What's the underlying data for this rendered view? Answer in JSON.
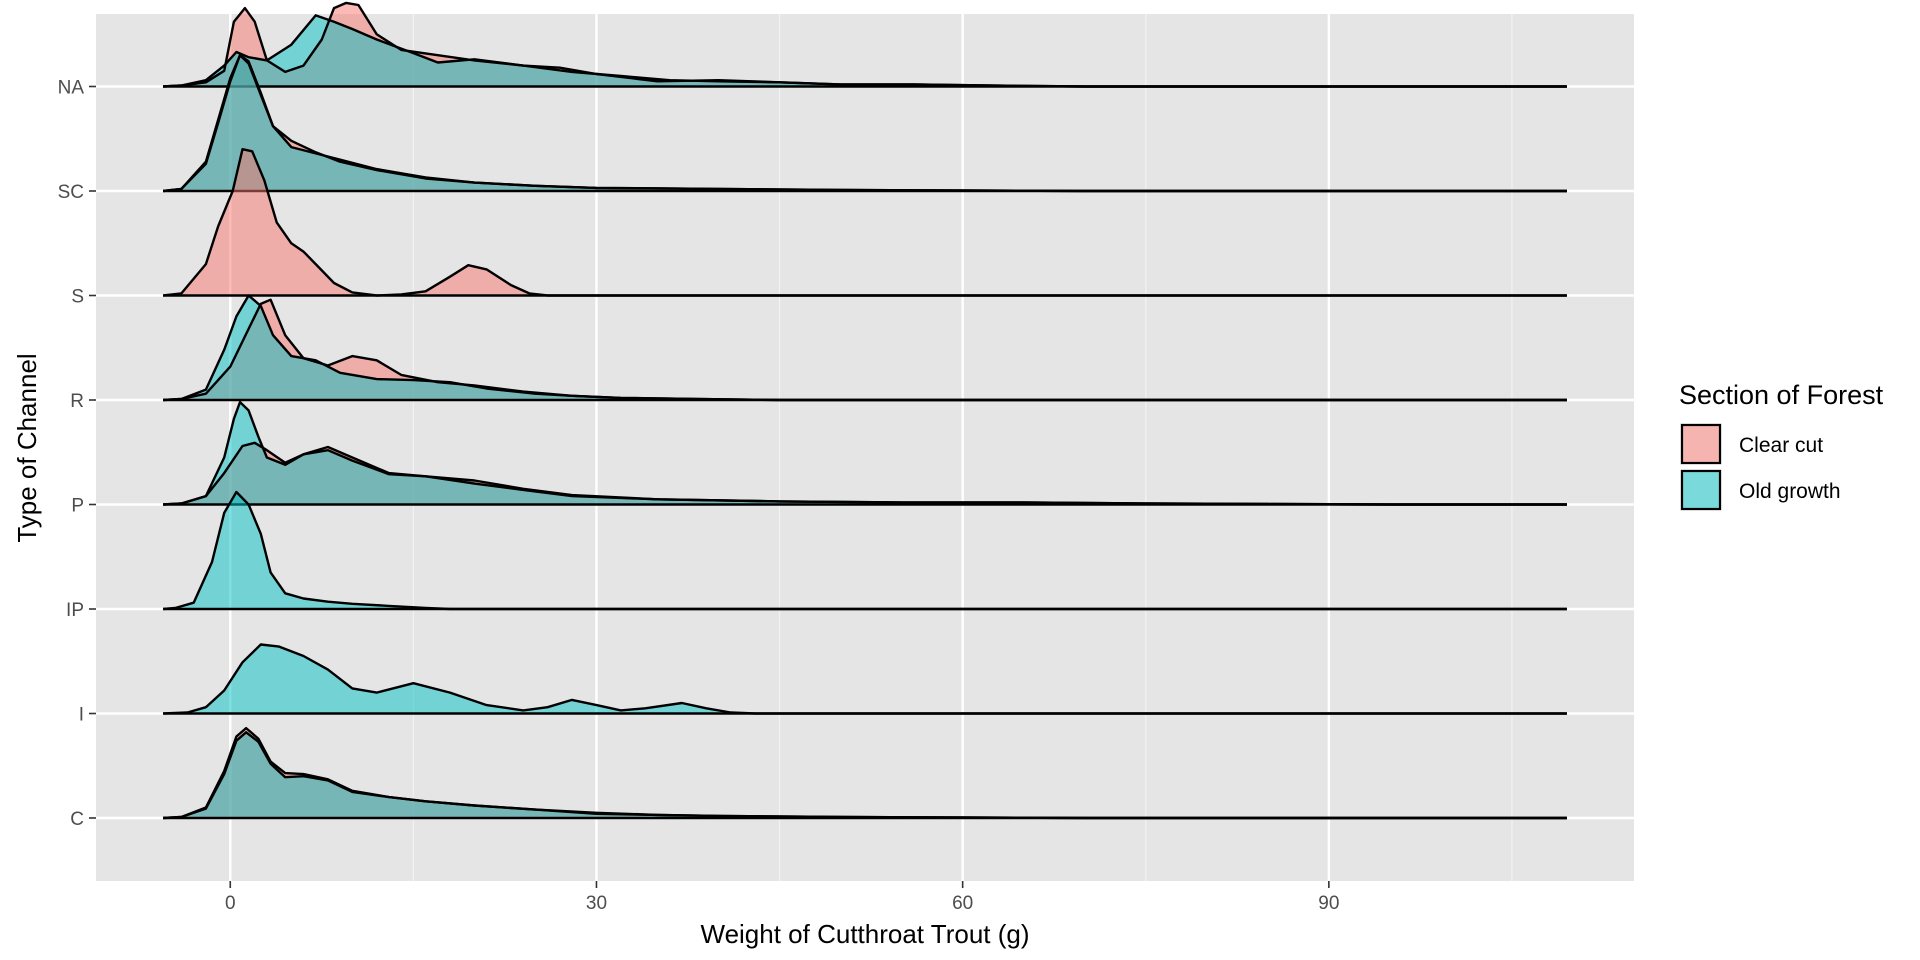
{
  "chart_data": {
    "type": "ridgeline-density",
    "title": "",
    "xlabel": "Weight of Cutthroat Trout (g)",
    "ylabel": "Type of Channel",
    "xlim": [
      -11,
      115
    ],
    "x_ticks": [
      0,
      30,
      60,
      90
    ],
    "x_minor_ticks": [
      15,
      45,
      75,
      105
    ],
    "categories": [
      "C",
      "I",
      "IP",
      "P",
      "R",
      "S",
      "SC",
      "NA"
    ],
    "line_range": [
      -5.5,
      109.5
    ],
    "ridge_scale": 1.0,
    "grid": true,
    "legend": {
      "title": "Section of Forest",
      "position": "right",
      "entries": [
        {
          "label": "Clear cut",
          "color": "#F8766D"
        },
        {
          "label": "Old growth",
          "color": "#00BFC4"
        }
      ]
    },
    "colors": {
      "panel_bg": "#E5E5E5",
      "grid": "#FFFFFF",
      "outline": "#000000",
      "fill_opacity": 0.5
    },
    "series": [
      {
        "name": "Clear cut",
        "category": "C",
        "points": [
          [
            -5.5,
            0
          ],
          [
            -4,
            0.01
          ],
          [
            -2,
            0.1
          ],
          [
            -0.5,
            0.45
          ],
          [
            0.5,
            0.78
          ],
          [
            1.3,
            0.86
          ],
          [
            2.3,
            0.76
          ],
          [
            3.3,
            0.54
          ],
          [
            4.5,
            0.43
          ],
          [
            6,
            0.42
          ],
          [
            8,
            0.37
          ],
          [
            10,
            0.26
          ],
          [
            13,
            0.2
          ],
          [
            16,
            0.16
          ],
          [
            20,
            0.12
          ],
          [
            25,
            0.08
          ],
          [
            30,
            0.05
          ],
          [
            35,
            0.03
          ],
          [
            40,
            0.02
          ],
          [
            50,
            0.01
          ],
          [
            60,
            0.005
          ],
          [
            70,
            0
          ],
          [
            109.5,
            0
          ]
        ]
      },
      {
        "name": "Old growth",
        "category": "C",
        "points": [
          [
            -5.5,
            0
          ],
          [
            -4,
            0.01
          ],
          [
            -2,
            0.09
          ],
          [
            -0.5,
            0.42
          ],
          [
            0.5,
            0.74
          ],
          [
            1.3,
            0.82
          ],
          [
            2.3,
            0.73
          ],
          [
            3.3,
            0.52
          ],
          [
            4.5,
            0.39
          ],
          [
            6,
            0.4
          ],
          [
            8,
            0.36
          ],
          [
            10,
            0.25
          ],
          [
            13,
            0.2
          ],
          [
            16,
            0.16
          ],
          [
            20,
            0.12
          ],
          [
            25,
            0.08
          ],
          [
            30,
            0.04
          ],
          [
            35,
            0.03
          ],
          [
            40,
            0.02
          ],
          [
            50,
            0.01
          ],
          [
            60,
            0.005
          ],
          [
            70,
            0
          ],
          [
            109.5,
            0
          ]
        ]
      },
      {
        "name": "Old growth",
        "category": "I",
        "points": [
          [
            -5.5,
            0
          ],
          [
            -3.5,
            0.01
          ],
          [
            -2,
            0.06
          ],
          [
            -0.5,
            0.22
          ],
          [
            1,
            0.49
          ],
          [
            2.5,
            0.66
          ],
          [
            4,
            0.64
          ],
          [
            6,
            0.55
          ],
          [
            8,
            0.42
          ],
          [
            10,
            0.24
          ],
          [
            12,
            0.2
          ],
          [
            15,
            0.29
          ],
          [
            18,
            0.2
          ],
          [
            21,
            0.08
          ],
          [
            24,
            0.03
          ],
          [
            26,
            0.06
          ],
          [
            28,
            0.13
          ],
          [
            30,
            0.08
          ],
          [
            32,
            0.03
          ],
          [
            34,
            0.05
          ],
          [
            37,
            0.1
          ],
          [
            39,
            0.05
          ],
          [
            41,
            0.01
          ],
          [
            43,
            0
          ],
          [
            109.5,
            0
          ]
        ]
      },
      {
        "name": "Old growth",
        "category": "IP",
        "points": [
          [
            -5.5,
            0
          ],
          [
            -4.5,
            0.01
          ],
          [
            -3,
            0.06
          ],
          [
            -1.5,
            0.45
          ],
          [
            -0.5,
            0.92
          ],
          [
            0.5,
            1.12
          ],
          [
            1.5,
            1.0
          ],
          [
            2.5,
            0.72
          ],
          [
            3.3,
            0.35
          ],
          [
            4.5,
            0.15
          ],
          [
            6,
            0.1
          ],
          [
            8,
            0.07
          ],
          [
            10,
            0.05
          ],
          [
            13,
            0.03
          ],
          [
            16,
            0.01
          ],
          [
            18,
            0
          ],
          [
            109.5,
            0
          ]
        ]
      },
      {
        "name": "Clear cut",
        "category": "P",
        "points": [
          [
            -5.5,
            0
          ],
          [
            -4,
            0.01
          ],
          [
            -2,
            0.08
          ],
          [
            -0.5,
            0.3
          ],
          [
            1,
            0.56
          ],
          [
            2,
            0.59
          ],
          [
            3,
            0.52
          ],
          [
            4.5,
            0.4
          ],
          [
            6,
            0.48
          ],
          [
            8,
            0.55
          ],
          [
            10,
            0.45
          ],
          [
            13,
            0.3
          ],
          [
            16,
            0.27
          ],
          [
            20,
            0.23
          ],
          [
            24,
            0.15
          ],
          [
            28,
            0.09
          ],
          [
            35,
            0.05
          ],
          [
            45,
            0.03
          ],
          [
            55,
            0.02
          ],
          [
            65,
            0.02
          ],
          [
            75,
            0.01
          ],
          [
            85,
            0.005
          ],
          [
            95,
            0
          ],
          [
            109.5,
            0
          ]
        ]
      },
      {
        "name": "Old growth",
        "category": "P",
        "points": [
          [
            -5.5,
            0
          ],
          [
            -4,
            0.01
          ],
          [
            -2,
            0.08
          ],
          [
            -0.5,
            0.45
          ],
          [
            0.3,
            0.82
          ],
          [
            0.8,
            0.98
          ],
          [
            1.5,
            0.9
          ],
          [
            2.3,
            0.65
          ],
          [
            3,
            0.45
          ],
          [
            4.5,
            0.38
          ],
          [
            6,
            0.48
          ],
          [
            8,
            0.52
          ],
          [
            10,
            0.42
          ],
          [
            13,
            0.29
          ],
          [
            16,
            0.27
          ],
          [
            20,
            0.2
          ],
          [
            24,
            0.14
          ],
          [
            28,
            0.08
          ],
          [
            35,
            0.05
          ],
          [
            45,
            0.03
          ],
          [
            55,
            0.02
          ],
          [
            65,
            0.02
          ],
          [
            75,
            0.01
          ],
          [
            85,
            0.005
          ],
          [
            95,
            0
          ],
          [
            109.5,
            0
          ]
        ]
      },
      {
        "name": "Clear cut",
        "category": "R",
        "points": [
          [
            -5.5,
            0
          ],
          [
            -4,
            0.01
          ],
          [
            -2,
            0.06
          ],
          [
            0,
            0.32
          ],
          [
            1.5,
            0.68
          ],
          [
            2.5,
            0.92
          ],
          [
            3.3,
            0.96
          ],
          [
            4.5,
            0.62
          ],
          [
            6,
            0.4
          ],
          [
            8,
            0.33
          ],
          [
            10,
            0.42
          ],
          [
            12,
            0.38
          ],
          [
            14,
            0.24
          ],
          [
            17,
            0.17
          ],
          [
            20,
            0.14
          ],
          [
            24,
            0.08
          ],
          [
            28,
            0.04
          ],
          [
            32,
            0.02
          ],
          [
            38,
            0.01
          ],
          [
            45,
            0
          ],
          [
            109.5,
            0
          ]
        ]
      },
      {
        "name": "Old growth",
        "category": "R",
        "points": [
          [
            -5.5,
            0
          ],
          [
            -4,
            0.01
          ],
          [
            -2,
            0.1
          ],
          [
            -0.5,
            0.48
          ],
          [
            0.5,
            0.8
          ],
          [
            1.5,
            1.0
          ],
          [
            2.5,
            0.9
          ],
          [
            3.5,
            0.62
          ],
          [
            5,
            0.42
          ],
          [
            7,
            0.38
          ],
          [
            9,
            0.26
          ],
          [
            12,
            0.2
          ],
          [
            15,
            0.19
          ],
          [
            18,
            0.17
          ],
          [
            21,
            0.11
          ],
          [
            25,
            0.06
          ],
          [
            28,
            0.04
          ],
          [
            32,
            0.02
          ],
          [
            38,
            0.01
          ],
          [
            45,
            0
          ],
          [
            109.5,
            0
          ]
        ]
      },
      {
        "name": "Clear cut",
        "category": "S",
        "points": [
          [
            -5.5,
            0
          ],
          [
            -4,
            0.02
          ],
          [
            -2,
            0.3
          ],
          [
            -1,
            0.66
          ],
          [
            0.2,
            1.0
          ],
          [
            1,
            1.4
          ],
          [
            1.8,
            1.38
          ],
          [
            2.8,
            1.1
          ],
          [
            3.8,
            0.7
          ],
          [
            5,
            0.5
          ],
          [
            6,
            0.42
          ],
          [
            7,
            0.3
          ],
          [
            8.5,
            0.12
          ],
          [
            10,
            0.03
          ],
          [
            12,
            0
          ],
          [
            14,
            0.01
          ],
          [
            16,
            0.04
          ],
          [
            18,
            0.18
          ],
          [
            19.5,
            0.29
          ],
          [
            21,
            0.25
          ],
          [
            23,
            0.1
          ],
          [
            24.5,
            0.02
          ],
          [
            26,
            0
          ],
          [
            109.5,
            0
          ]
        ]
      },
      {
        "name": "Clear cut",
        "category": "SC",
        "points": [
          [
            -5.5,
            0
          ],
          [
            -4,
            0.02
          ],
          [
            -2,
            0.28
          ],
          [
            -1,
            0.68
          ],
          [
            0,
            1.08
          ],
          [
            0.8,
            1.3
          ],
          [
            1.5,
            1.22
          ],
          [
            2.5,
            0.92
          ],
          [
            3.5,
            0.62
          ],
          [
            5,
            0.48
          ],
          [
            7,
            0.37
          ],
          [
            9,
            0.28
          ],
          [
            12,
            0.2
          ],
          [
            16,
            0.12
          ],
          [
            20,
            0.08
          ],
          [
            25,
            0.05
          ],
          [
            30,
            0.03
          ],
          [
            40,
            0.02
          ],
          [
            50,
            0.01
          ],
          [
            60,
            0.005
          ],
          [
            70,
            0
          ],
          [
            109.5,
            0
          ]
        ]
      },
      {
        "name": "Old growth",
        "category": "SC",
        "points": [
          [
            -5.5,
            0
          ],
          [
            -4,
            0.02
          ],
          [
            -2,
            0.26
          ],
          [
            -1,
            0.65
          ],
          [
            0,
            1.05
          ],
          [
            0.8,
            1.3
          ],
          [
            1.5,
            1.24
          ],
          [
            2.5,
            0.94
          ],
          [
            3.5,
            0.62
          ],
          [
            5,
            0.42
          ],
          [
            7,
            0.36
          ],
          [
            9,
            0.3
          ],
          [
            12,
            0.21
          ],
          [
            16,
            0.13
          ],
          [
            20,
            0.08
          ],
          [
            25,
            0.05
          ],
          [
            30,
            0.03
          ],
          [
            40,
            0.02
          ],
          [
            50,
            0.01
          ],
          [
            60,
            0.005
          ],
          [
            70,
            0
          ],
          [
            109.5,
            0
          ]
        ]
      },
      {
        "name": "Clear cut",
        "category": "NA",
        "points": [
          [
            -5.5,
            0
          ],
          [
            -4,
            0.01
          ],
          [
            -2,
            0.04
          ],
          [
            -0.5,
            0.15
          ],
          [
            0.3,
            0.62
          ],
          [
            1.2,
            0.75
          ],
          [
            2,
            0.62
          ],
          [
            3,
            0.25
          ],
          [
            4.5,
            0.14
          ],
          [
            6,
            0.2
          ],
          [
            7.5,
            0.45
          ],
          [
            8.5,
            0.75
          ],
          [
            9.5,
            0.8
          ],
          [
            10.5,
            0.78
          ],
          [
            12,
            0.5
          ],
          [
            14,
            0.35
          ],
          [
            17,
            0.3
          ],
          [
            20,
            0.25
          ],
          [
            24,
            0.2
          ],
          [
            27,
            0.18
          ],
          [
            30,
            0.12
          ],
          [
            35,
            0.05
          ],
          [
            40,
            0.06
          ],
          [
            45,
            0.04
          ],
          [
            50,
            0.02
          ],
          [
            56,
            0.02
          ],
          [
            62,
            0.01
          ],
          [
            70,
            0
          ],
          [
            109.5,
            0
          ]
        ]
      },
      {
        "name": "Old growth",
        "category": "NA",
        "points": [
          [
            -5.5,
            0
          ],
          [
            -4,
            0.01
          ],
          [
            -2,
            0.06
          ],
          [
            -0.5,
            0.2
          ],
          [
            0.5,
            0.33
          ],
          [
            1.5,
            0.28
          ],
          [
            3,
            0.25
          ],
          [
            5,
            0.4
          ],
          [
            7,
            0.68
          ],
          [
            8.5,
            0.62
          ],
          [
            10,
            0.55
          ],
          [
            12,
            0.45
          ],
          [
            15,
            0.32
          ],
          [
            17,
            0.23
          ],
          [
            20,
            0.26
          ],
          [
            24,
            0.2
          ],
          [
            28,
            0.14
          ],
          [
            32,
            0.1
          ],
          [
            36,
            0.06
          ],
          [
            40,
            0.05
          ],
          [
            45,
            0.04
          ],
          [
            50,
            0.02
          ],
          [
            56,
            0.02
          ],
          [
            62,
            0.01
          ],
          [
            70,
            0
          ],
          [
            109.5,
            0
          ]
        ]
      }
    ]
  }
}
